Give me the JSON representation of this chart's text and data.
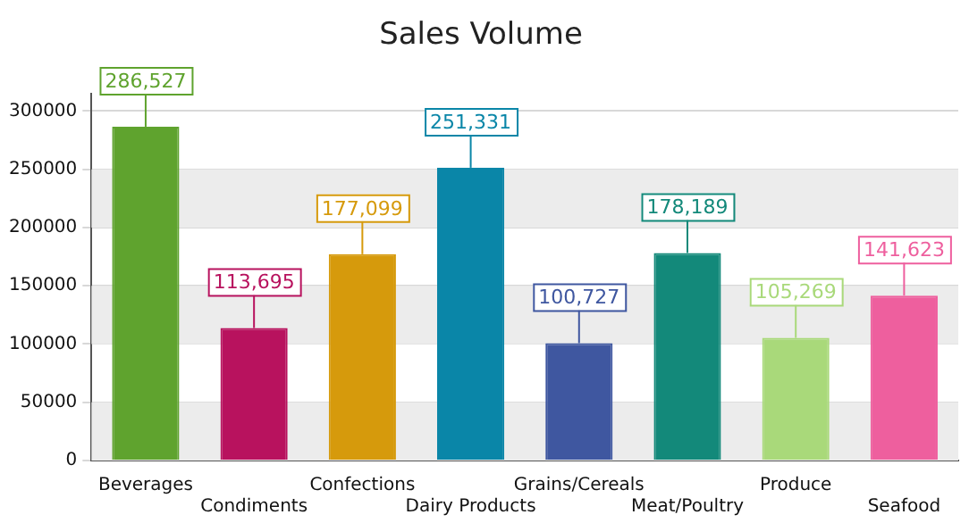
{
  "chart_data": {
    "type": "bar",
    "title": "Sales Volume",
    "categories": [
      "Beverages",
      "Condiments",
      "Confections",
      "Dairy Products",
      "Grains/Cereals",
      "Meat/Poultry",
      "Produce",
      "Seafood"
    ],
    "values": [
      286527,
      113695,
      177099,
      251331,
      100727,
      178189,
      105269,
      141623
    ],
    "value_labels": [
      "286,527",
      "113,695",
      "177,099",
      "251,331",
      "100,727",
      "178,189",
      "105,269",
      "141,623"
    ],
    "colors": [
      "#5fa32e",
      "#b8125e",
      "#d69a0c",
      "#0a86a8",
      "#3f57a0",
      "#13897a",
      "#a9d97a",
      "#ee5f9e"
    ],
    "ylim": [
      0,
      315000
    ],
    "yticks": [
      0,
      50000,
      100000,
      150000,
      200000,
      250000,
      300000
    ],
    "grid": "y",
    "legend": false
  }
}
